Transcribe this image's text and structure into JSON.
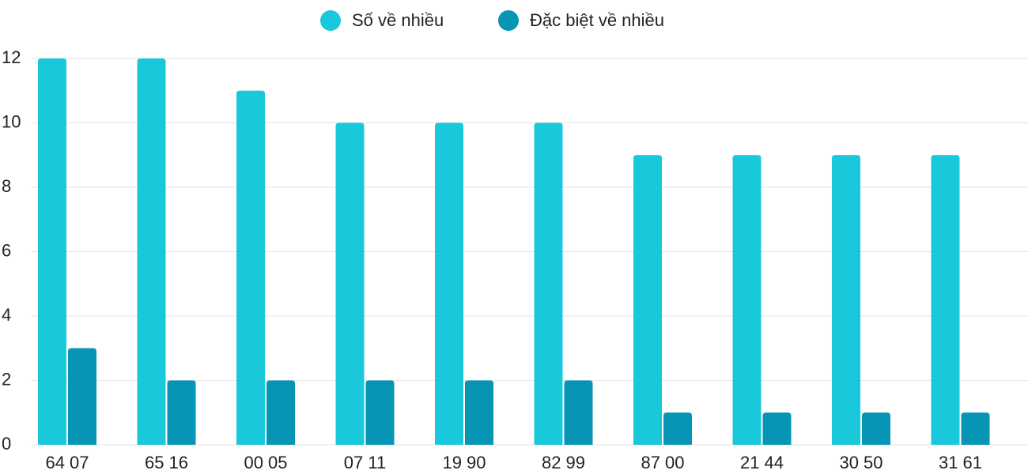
{
  "chart_data": {
    "type": "bar",
    "categories": [
      "64 07",
      "65 16",
      "00 05",
      "07 11",
      "19 90",
      "82 99",
      "87 00",
      "21 44",
      "30 50",
      "31 61"
    ],
    "series": [
      {
        "name": "Số về nhiều",
        "color": "#1ac8db",
        "values": [
          12,
          12,
          11,
          10,
          10,
          10,
          9,
          9,
          9,
          9
        ]
      },
      {
        "name": "Đặc biệt về nhiều",
        "color": "#0795b5",
        "values": [
          3,
          2,
          2,
          2,
          2,
          2,
          1,
          1,
          1,
          1
        ]
      }
    ],
    "ylim": [
      0,
      12
    ],
    "yticks": [
      0,
      2,
      4,
      6,
      8,
      10,
      12
    ],
    "grid": true,
    "legend": "top"
  }
}
